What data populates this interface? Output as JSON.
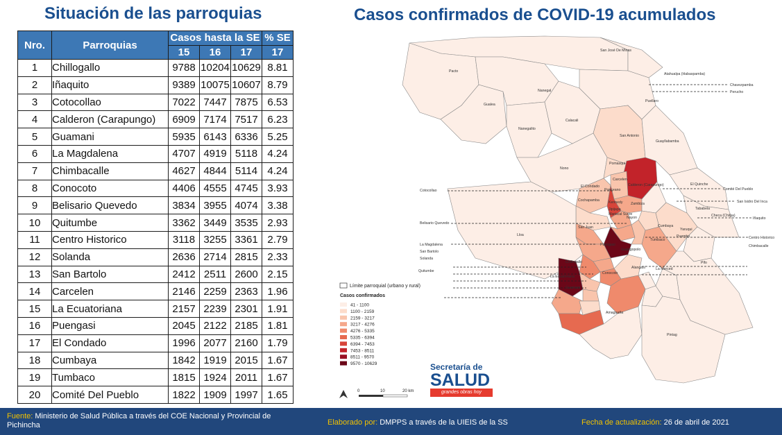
{
  "left_title": "Situación de las parroquias",
  "right_title": "Casos confirmados de COVID-19 acumulados",
  "table": {
    "h_nro": "Nro.",
    "h_parroquias": "Parroquias",
    "h_casos": "Casos hasta la SE",
    "h_pct": "% SE",
    "h_w15": "15",
    "h_w16": "16",
    "h_w17": "17",
    "h_w17p": "17",
    "rows": [
      {
        "n": "1",
        "name": "Chillogallo",
        "w15": "9788",
        "w16": "10204",
        "w17": "10629",
        "pct": "8.81"
      },
      {
        "n": "2",
        "name": "Iñaquito",
        "w15": "9389",
        "w16": "10075",
        "w17": "10607",
        "pct": "8.79"
      },
      {
        "n": "3",
        "name": "Cotocollao",
        "w15": "7022",
        "w16": "7447",
        "w17": "7875",
        "pct": "6.53"
      },
      {
        "n": "4",
        "name": "Calderon (Carapungo)",
        "w15": "6909",
        "w16": "7174",
        "w17": "7517",
        "pct": "6.23"
      },
      {
        "n": "5",
        "name": "Guamani",
        "w15": "5935",
        "w16": "6143",
        "w17": "6336",
        "pct": "5.25"
      },
      {
        "n": "6",
        "name": "La Magdalena",
        "w15": "4707",
        "w16": "4919",
        "w17": "5118",
        "pct": "4.24"
      },
      {
        "n": "7",
        "name": "Chimbacalle",
        "w15": "4627",
        "w16": "4844",
        "w17": "5114",
        "pct": "4.24"
      },
      {
        "n": "8",
        "name": "Conocoto",
        "w15": "4406",
        "w16": "4555",
        "w17": "4745",
        "pct": "3.93"
      },
      {
        "n": "9",
        "name": "Belisario Quevedo",
        "w15": "3834",
        "w16": "3955",
        "w17": "4074",
        "pct": "3.38"
      },
      {
        "n": "10",
        "name": "Quitumbe",
        "w15": "3362",
        "w16": "3449",
        "w17": "3535",
        "pct": "2.93"
      },
      {
        "n": "11",
        "name": "Centro Historico",
        "w15": "3118",
        "w16": "3255",
        "w17": "3361",
        "pct": "2.79"
      },
      {
        "n": "12",
        "name": "Solanda",
        "w15": "2636",
        "w16": "2714",
        "w17": "2815",
        "pct": "2.33"
      },
      {
        "n": "13",
        "name": "San Bartolo",
        "w15": "2412",
        "w16": "2511",
        "w17": "2600",
        "pct": "2.15"
      },
      {
        "n": "14",
        "name": "Carcelen",
        "w15": "2146",
        "w16": "2259",
        "w17": "2363",
        "pct": "1.96"
      },
      {
        "n": "15",
        "name": "La Ecuatoriana",
        "w15": "2157",
        "w16": "2239",
        "w17": "2301",
        "pct": "1.91"
      },
      {
        "n": "16",
        "name": "Puengasi",
        "w15": "2045",
        "w16": "2122",
        "w17": "2185",
        "pct": "1.81"
      },
      {
        "n": "17",
        "name": "El Condado",
        "w15": "1996",
        "w16": "2077",
        "w17": "2160",
        "pct": "1.79"
      },
      {
        "n": "18",
        "name": "Cumbaya",
        "w15": "1842",
        "w16": "1919",
        "w17": "2015",
        "pct": "1.67"
      },
      {
        "n": "19",
        "name": "Tumbaco",
        "w15": "1815",
        "w16": "1924",
        "w17": "2011",
        "pct": "1.67"
      },
      {
        "n": "20",
        "name": "Comité Del Pueblo",
        "w15": "1822",
        "w16": "1909",
        "w17": "1997",
        "pct": "1.65"
      }
    ]
  },
  "map": {
    "legend_limit": "Límite parroquial (urbano y rural)",
    "legend_title": "Casos confirmados",
    "legend": [
      {
        "label": "41 - 1100",
        "color": "#fdeee6"
      },
      {
        "label": "1100 - 2159",
        "color": "#fcdccb"
      },
      {
        "label": "2159 - 3217",
        "color": "#f9c5ad"
      },
      {
        "label": "3217 - 4276",
        "color": "#f5a88b"
      },
      {
        "label": "4276 - 5335",
        "color": "#ef8a6c"
      },
      {
        "label": "5335 - 6394",
        "color": "#e66a50"
      },
      {
        "label": "6394 - 7453",
        "color": "#d7443a"
      },
      {
        "label": "7453 - 8511",
        "color": "#c2232a"
      },
      {
        "label": "8511 - 9570",
        "color": "#9a1023"
      },
      {
        "label": "9570 - 10629",
        "color": "#6b0718"
      }
    ],
    "scale_0": "0",
    "scale_10": "10",
    "scale_20": "20 km",
    "labels": {
      "san_jose": "San José De Minas",
      "pacto": "Pacto",
      "atahualpa": "Atahualpa (Habaspamba)",
      "chavezpamba": "Chavezpamba",
      "perucho": "Perucho",
      "nanegal": "Nanegal",
      "gualea": "Gualea",
      "puellaro": "Puellaro",
      "nanegalito": "Nanegalito",
      "calacali": "Calacali",
      "san_antonio": "San Antonio",
      "guayllabamba": "Guayllabamba",
      "nono": "Nono",
      "pomasqui": "Pomasqui",
      "carcelen": "Carcelen",
      "el_condado": "El Condado",
      "calderon": "Calderon (Carapungo)",
      "el_quinche": "El Quinche",
      "comite": "Comité Del Pueblo",
      "cotocollao": "Cotocollao",
      "ponceano": "Ponceano",
      "kennedy": "Kennedy",
      "zambiza": "Zambiza",
      "san_isidro": "San Isidro Del Inca",
      "cochapamba": "Cochapamba",
      "jipijapa": "Jipijapa",
      "checa": "Checa (Chilpa)",
      "inaquito": "Iñaquito",
      "belisario": "Belisario Quevedo",
      "mariscal": "Mariscal Sucre",
      "san_juan": "San Juan",
      "lloa": "Lloa",
      "yaruqui": "Yaruqui",
      "centro_historico": "Centro Historico",
      "la_magdalena": "La Magdalena",
      "chimbacalle": "Chimbacalle",
      "san_bartolo": "San Bartolo",
      "solanda": "Solanda",
      "puengasi": "Puengasi",
      "quitumbe": "Quitumbe",
      "chillogallo": "Chillogallo",
      "la_ecuatoriana": "La Ecuatoriana",
      "guangopolo": "Guangopolo",
      "conocoto": "Conocoto",
      "la_merced": "La Merced",
      "alangasi": "Alangasi",
      "pifo": "Pifo",
      "guamani": "Guamani",
      "amaguana": "Amaguaña",
      "pintag": "Pintag",
      "tumbaco": "Tumbaco",
      "cumbaya": "Cumbaya",
      "nayon": "Nayon",
      "tababela": "Tababela",
      "puembo": "Puembo"
    }
  },
  "logo": {
    "line1": "Secretaría de",
    "line2": "SALUD",
    "tagline": "grandes obras hoy"
  },
  "footer": {
    "source_label": "Fuente:",
    "source_text": "Ministerio de Salud Pública a través del COE Nacional y Provincial de Pichincha",
    "elab_label": "Elaborado por:",
    "elab_text": "DMPPS a través de la UIEIS de la SS",
    "date_label": "Fecha de actualización:",
    "date_text": "26 de abril de 2021"
  }
}
